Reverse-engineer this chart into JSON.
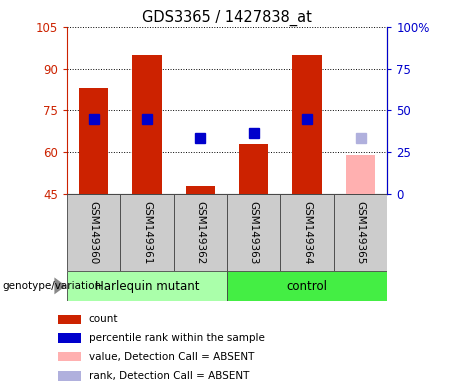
{
  "title": "GDS3365 / 1427838_at",
  "samples": [
    "GSM149360",
    "GSM149361",
    "GSM149362",
    "GSM149363",
    "GSM149364",
    "GSM149365"
  ],
  "bar_values": [
    83,
    95,
    48,
    63,
    95,
    59
  ],
  "bar_colors": [
    "#cc2200",
    "#cc2200",
    "#cc2200",
    "#cc2200",
    "#cc2200",
    "#ffb0b0"
  ],
  "rank_values": [
    72,
    72,
    65,
    67,
    72,
    65
  ],
  "rank_colors": [
    "#0000cc",
    "#0000cc",
    "#0000cc",
    "#0000cc",
    "#0000cc",
    "#b0b0dd"
  ],
  "ylim_left": [
    45,
    105
  ],
  "ylim_right": [
    0,
    100
  ],
  "yticks_left": [
    45,
    60,
    75,
    90,
    105
  ],
  "yticks_right": [
    0,
    25,
    50,
    75,
    100
  ],
  "ytick_labels_left": [
    "45",
    "60",
    "75",
    "90",
    "105"
  ],
  "ytick_labels_right": [
    "0",
    "25",
    "50",
    "75",
    "100%"
  ],
  "group_label_harlequin": "Harlequin mutant",
  "group_label_control": "control",
  "group_color_harlequin": "#aaffaa",
  "group_color_control": "#44ee44",
  "left_axis_color": "#cc2200",
  "right_axis_color": "#0000cc",
  "legend_items": [
    {
      "label": "count",
      "color": "#cc2200"
    },
    {
      "label": "percentile rank within the sample",
      "color": "#0000cc"
    },
    {
      "label": "value, Detection Call = ABSENT",
      "color": "#ffb0b0"
    },
    {
      "label": "rank, Detection Call = ABSENT",
      "color": "#b0b0dd"
    }
  ],
  "bar_bottom": 45,
  "bar_width": 0.55,
  "rank_marker_size": 7,
  "sample_box_color": "#cccccc",
  "genotype_label": "genotype/variation"
}
